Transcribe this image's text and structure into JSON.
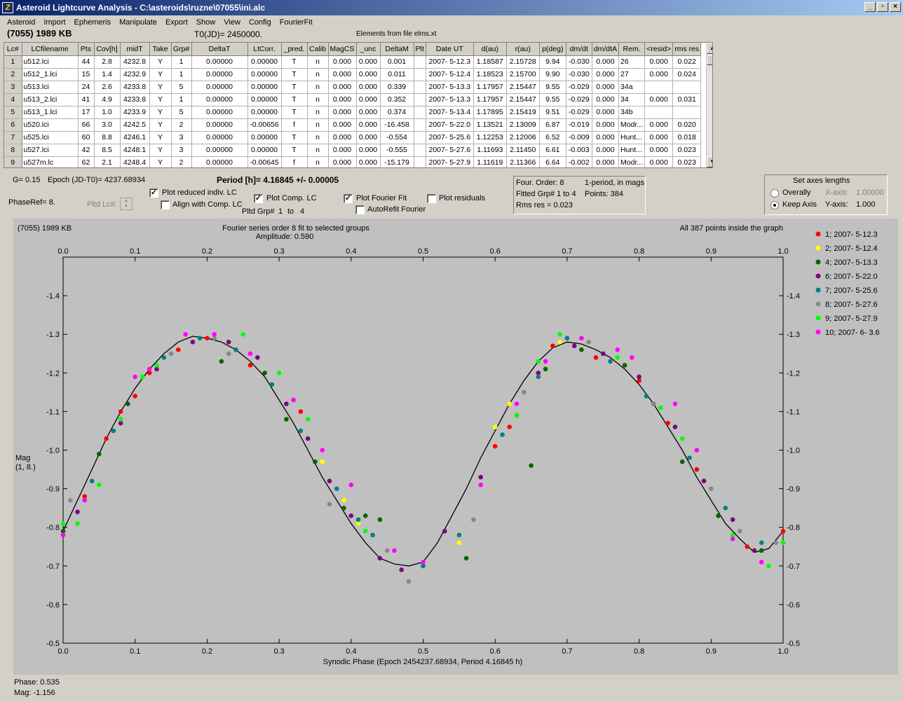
{
  "window": {
    "title": "Asteroid Lightcurve Analysis - C:\\asteroids\\ruzne\\07055\\ini.alc",
    "minimize": "_",
    "restore": "▫",
    "close": "×"
  },
  "menu": [
    "Asteroid",
    "Import",
    "Ephemeris",
    "Manipulate",
    "Export",
    "Show",
    "View",
    "Config",
    "FourierFit"
  ],
  "header": {
    "asteroid": "(7055) 1989 KB",
    "t0": "T0(JD)= 2450000.",
    "elements": "Elements from file elms.xt"
  },
  "table": {
    "columns": [
      "Lc#",
      "LCfilename",
      "Pts",
      "Cov[h]",
      "midT",
      "Take",
      "Grp#",
      "DeltaT",
      "LtCorr.",
      "_pred.",
      "Calib",
      "MagCS",
      "_unc",
      "DeltaM",
      "Plt",
      "Date UT",
      "d(au)",
      "r(au)",
      "p(deg)",
      "dm/dt",
      "dm/dtA",
      "Rem.",
      "<resid>",
      "rms res"
    ],
    "rows": [
      [
        "1",
        "u512.lci",
        "44",
        "2.8",
        "4232.8",
        "Y",
        "1",
        "0.00000",
        "0.00000",
        "T",
        "n",
        "0.000",
        "0.000",
        "0.001",
        "",
        "2007- 5-12.3",
        "1.18587",
        "2.15728",
        "9.94",
        "-0.030",
        "0.000",
        "26",
        "0.000",
        "0.022"
      ],
      [
        "2",
        "u512_1.lci",
        "15",
        "1.4",
        "4232.9",
        "Y",
        "1",
        "0.00000",
        "0.00000",
        "T",
        "n",
        "0.000",
        "0.000",
        "0.011",
        "",
        "2007- 5-12.4",
        "1.18523",
        "2.15700",
        "9.90",
        "-0.030",
        "0.000",
        "27",
        "0.000",
        "0.024"
      ],
      [
        "3",
        "u513.lci",
        "24",
        "2.6",
        "4233.8",
        "Y",
        "5",
        "0.00000",
        "0.00000",
        "T",
        "n",
        "0.000",
        "0.000",
        "0.339",
        "",
        "2007- 5-13.3",
        "1.17957",
        "2.15447",
        "9.55",
        "-0.029",
        "0.000",
        "34a",
        "",
        ""
      ],
      [
        "4",
        "u513_2.lci",
        "41",
        "4.9",
        "4233.8",
        "Y",
        "1",
        "0.00000",
        "0.00000",
        "T",
        "n",
        "0.000",
        "0.000",
        "0.352",
        "",
        "2007- 5-13.3",
        "1.17957",
        "2.15447",
        "9.55",
        "-0.029",
        "0.000",
        "34",
        "0.000",
        "0.031"
      ],
      [
        "5",
        "u513_1.lci",
        "17",
        "1.0",
        "4233.9",
        "Y",
        "5",
        "0.00000",
        "0.00000",
        "T",
        "n",
        "0.000",
        "0.000",
        "0.374",
        "",
        "2007- 5-13.4",
        "1.17895",
        "2.15419",
        "9.51",
        "-0.029",
        "0.000",
        "34b",
        "",
        ""
      ],
      [
        "6",
        "u520.lci",
        "66",
        "3.0",
        "4242.5",
        "Y",
        "2",
        "0.00000",
        "-0.00656",
        "f",
        "n",
        "0.000",
        "0.000",
        "-16.458",
        "",
        "2007- 5-22.0",
        "1.13521",
        "2.13009",
        "6.87",
        "-0.019",
        "0.000",
        "Modr...",
        "0.000",
        "0.020"
      ],
      [
        "7",
        "u525.lci",
        "60",
        "8.8",
        "4246.1",
        "Y",
        "3",
        "0.00000",
        "0.00000",
        "T",
        "n",
        "0.000",
        "0.000",
        "-0.554",
        "",
        "2007- 5-25.6",
        "1.12253",
        "2.12006",
        "6.52",
        "-0.009",
        "0.000",
        "Hunt...",
        "0.000",
        "0.018"
      ],
      [
        "8",
        "u527.lci",
        "42",
        "8.5",
        "4248.1",
        "Y",
        "3",
        "0.00000",
        "0.00000",
        "T",
        "n",
        "0.000",
        "0.000",
        "-0.555",
        "",
        "2007- 5-27.6",
        "1.11693",
        "2.11450",
        "6.61",
        "-0.003",
        "0.000",
        "Hunt...",
        "0.000",
        "0.023"
      ],
      [
        "9",
        "u527m.lc",
        "62",
        "2.1",
        "4248.4",
        "Y",
        "2",
        "0.00000",
        "-0.00645",
        "f",
        "n",
        "0.000",
        "0.000",
        "-15.179",
        "",
        "2007- 5-27.9",
        "1.11619",
        "2.11366",
        "6.64",
        "-0.002",
        "0.000",
        "Modr...",
        "0.000",
        "0.023"
      ]
    ]
  },
  "controls": {
    "g_value": "G= 0.15",
    "epoch": "Epoch (JD-T0)= 4237.68934",
    "period": "Period [h]= 4.16845 +/- 0.00005",
    "phaseref": "PhaseRef= 8.",
    "pltd_lc": "Pltd Lc#:",
    "plot_reduced": "Plot reduced indiv. LC",
    "plot_reduced_checked": true,
    "align_comp": "Align with Comp. LC",
    "align_comp_checked": false,
    "plot_comp": "Plot Comp. LC",
    "plot_comp_checked": true,
    "pltd_grp": "Pltd Grp#",
    "pltd_grp_from": "1",
    "pltd_grp_to_label": "to",
    "pltd_grp_to": "4",
    "plot_fourier": "Plot Fourier Fit",
    "plot_fourier_checked": true,
    "autorefit": "AutoRefit Fourier",
    "autorefit_checked": false,
    "plot_residuals": "Plot residuals",
    "plot_residuals_checked": false
  },
  "fourier_info": {
    "order": "Four. Order:  8",
    "mode": "1-period, in mags",
    "fitted": "Fitted Grp# 1 to 4",
    "points": "Points: 384",
    "rms": "Rms res     = 0.023"
  },
  "axes_panel": {
    "title": "Set axes lengths",
    "overally": "Overally",
    "keep_axis": "Keep Axis",
    "selected": "keep_axis",
    "x_axis_label": "X-axis:",
    "x_axis_value": "1.00000",
    "y_axis_label": "Y-axis:",
    "y_axis_value": "1.000"
  },
  "plot": {
    "corner_title": "(7055) 1989 KB",
    "center_title": "Fourier series order 8 fit to selected groups",
    "amplitude": "Amplitude: 0.590",
    "points_note": "All 387 points inside the graph",
    "ylabel_1": "Mag",
    "ylabel_2": "(1, 8.)",
    "xlabel": "Synodic Phase (Epoch 2454237.68934, Period 4.16845 h)"
  },
  "status": {
    "phase": "Phase:  0.535",
    "mag": "Mag:    -1.156"
  },
  "chart_data": {
    "type": "scatter",
    "title": "Fourier series order 8 fit to selected groups",
    "xlabel": "Synodic Phase (Epoch 2454237.68934, Period 4.16845 h)",
    "ylabel": "Mag (1, 8.)",
    "xlim": [
      0.0,
      1.0
    ],
    "ylim": [
      -1.5,
      -0.5
    ],
    "y_inverted": true,
    "x_ticks": [
      "0.0",
      "0.1",
      "0.2",
      "0.3",
      "0.4",
      "0.5",
      "0.6",
      "0.7",
      "0.8",
      "0.9",
      "1.0"
    ],
    "y_ticks": [
      "-1.4",
      "-1.3",
      "-1.2",
      "-1.1",
      "-1.0",
      "-0.9",
      "-0.8",
      "-0.7",
      "-0.6",
      "-0.5"
    ],
    "legend_position": "right",
    "fourier_fit": {
      "x": [
        0.0,
        0.02,
        0.04,
        0.06,
        0.08,
        0.1,
        0.12,
        0.14,
        0.16,
        0.18,
        0.2,
        0.22,
        0.24,
        0.26,
        0.28,
        0.3,
        0.32,
        0.34,
        0.36,
        0.38,
        0.4,
        0.42,
        0.44,
        0.46,
        0.48,
        0.5,
        0.52,
        0.54,
        0.56,
        0.58,
        0.6,
        0.62,
        0.64,
        0.66,
        0.68,
        0.7,
        0.72,
        0.74,
        0.76,
        0.78,
        0.8,
        0.82,
        0.84,
        0.86,
        0.88,
        0.9,
        0.92,
        0.94,
        0.96,
        0.98,
        1.0
      ],
      "y": [
        -0.79,
        -0.87,
        -0.95,
        -1.03,
        -1.1,
        -1.16,
        -1.21,
        -1.25,
        -1.28,
        -1.295,
        -1.29,
        -1.28,
        -1.26,
        -1.23,
        -1.19,
        -1.13,
        -1.07,
        -1.0,
        -0.93,
        -0.87,
        -0.81,
        -0.76,
        -0.72,
        -0.705,
        -0.7,
        -0.71,
        -0.76,
        -0.83,
        -0.9,
        -0.98,
        -1.05,
        -1.12,
        -1.18,
        -1.23,
        -1.265,
        -1.28,
        -1.275,
        -1.26,
        -1.24,
        -1.21,
        -1.17,
        -1.12,
        -1.06,
        -1.0,
        -0.93,
        -0.87,
        -0.81,
        -0.77,
        -0.735,
        -0.745,
        -0.79
      ]
    },
    "series": [
      {
        "name": "1; 2007- 5-12.3",
        "color": "#ff0000",
        "x": [
          0.03,
          0.06,
          0.08,
          0.1,
          0.12,
          0.16,
          0.2,
          0.24,
          0.26,
          0.33,
          0.6,
          0.62,
          0.68,
          0.74,
          0.8,
          0.84,
          0.88,
          0.95,
          1.0
        ],
        "y": [
          -0.88,
          -1.03,
          -1.1,
          -1.14,
          -1.2,
          -1.26,
          -1.29,
          -1.26,
          -1.22,
          -1.1,
          -1.01,
          -1.06,
          -1.27,
          -1.24,
          -1.18,
          -1.07,
          -0.95,
          -0.75,
          -0.79
        ]
      },
      {
        "name": "2; 2007- 5-12.4",
        "color": "#ffff00",
        "x": [
          0.36,
          0.39,
          0.41,
          0.55,
          0.6,
          0.62,
          0.69,
          0.72
        ],
        "y": [
          -0.97,
          -0.87,
          -0.81,
          -0.76,
          -1.06,
          -1.12,
          -1.28,
          -1.29
        ]
      },
      {
        "name": "4; 2007- 5-13.3",
        "color": "#006400",
        "x": [
          0.0,
          0.05,
          0.09,
          0.22,
          0.28,
          0.31,
          0.35,
          0.39,
          0.42,
          0.44,
          0.56,
          0.65,
          0.67,
          0.72,
          0.78,
          0.82,
          0.86,
          0.91,
          0.97
        ],
        "y": [
          -0.79,
          -0.99,
          -1.12,
          -1.23,
          -1.2,
          -1.08,
          -0.97,
          -0.85,
          -0.83,
          -0.82,
          -0.72,
          -0.96,
          -1.21,
          -1.26,
          -1.22,
          -1.12,
          -0.97,
          -0.83,
          -0.74
        ]
      },
      {
        "name": "6; 2007- 5-22.0",
        "color": "#800080",
        "x": [
          0.02,
          0.08,
          0.13,
          0.18,
          0.23,
          0.27,
          0.31,
          0.34,
          0.37,
          0.4,
          0.44,
          0.47,
          0.53,
          0.58,
          0.63,
          0.66,
          0.71,
          0.75,
          0.8,
          0.85,
          0.89,
          0.93,
          0.96
        ],
        "y": [
          -0.84,
          -1.07,
          -1.21,
          -1.28,
          -1.28,
          -1.24,
          -1.12,
          -1.03,
          -0.92,
          -0.83,
          -0.72,
          -0.69,
          -0.79,
          -0.93,
          -1.09,
          -1.2,
          -1.27,
          -1.25,
          -1.19,
          -1.06,
          -0.92,
          -0.82,
          -0.74
        ]
      },
      {
        "name": "7; 2007- 5-25.6",
        "color": "#008080",
        "x": [
          0.04,
          0.07,
          0.14,
          0.19,
          0.24,
          0.29,
          0.33,
          0.38,
          0.41,
          0.43,
          0.5,
          0.55,
          0.61,
          0.66,
          0.7,
          0.76,
          0.81,
          0.87,
          0.92,
          0.97
        ],
        "y": [
          -0.92,
          -1.05,
          -1.24,
          -1.29,
          -1.26,
          -1.17,
          -1.05,
          -0.9,
          -0.82,
          -0.78,
          -0.7,
          -0.78,
          -1.04,
          -1.19,
          -1.29,
          -1.23,
          -1.14,
          -0.98,
          -0.85,
          -0.76
        ]
      },
      {
        "name": "8; 2007- 5-27.6",
        "color": "#888888",
        "x": [
          0.01,
          0.15,
          0.21,
          0.23,
          0.37,
          0.45,
          0.48,
          0.57,
          0.64,
          0.73,
          0.82,
          0.9,
          0.94,
          0.99
        ],
        "y": [
          -0.87,
          -1.25,
          -1.29,
          -1.25,
          -0.86,
          -0.74,
          -0.66,
          -0.82,
          -1.15,
          -1.28,
          -1.12,
          -0.9,
          -0.79,
          -0.76
        ]
      },
      {
        "name": "9; 2007- 5-27.9",
        "color": "#00ff00",
        "x": [
          0.0,
          0.02,
          0.05,
          0.08,
          0.11,
          0.13,
          0.25,
          0.3,
          0.34,
          0.42,
          0.63,
          0.66,
          0.69,
          0.77,
          0.83,
          0.86,
          0.93,
          0.98,
          1.0
        ],
        "y": [
          -0.81,
          -0.81,
          -0.91,
          -1.08,
          -1.19,
          -1.22,
          -1.3,
          -1.2,
          -1.08,
          -0.79,
          -1.09,
          -1.23,
          -1.3,
          -1.24,
          -1.11,
          -1.03,
          -0.78,
          -0.7,
          -0.76
        ]
      },
      {
        "name": "10; 2007- 6- 3.6",
        "color": "#ff00ff",
        "x": [
          0.0,
          0.03,
          0.1,
          0.12,
          0.17,
          0.21,
          0.26,
          0.32,
          0.36,
          0.4,
          0.46,
          0.5,
          0.58,
          0.63,
          0.67,
          0.72,
          0.77,
          0.79,
          0.85,
          0.88,
          0.93,
          0.97
        ],
        "y": [
          -0.78,
          -0.87,
          -1.19,
          -1.21,
          -1.3,
          -1.3,
          -1.25,
          -1.13,
          -1.0,
          -0.91,
          -0.74,
          -0.71,
          -0.91,
          -1.12,
          -1.23,
          -1.29,
          -1.26,
          -1.24,
          -1.12,
          -1.0,
          -0.77,
          -0.71
        ]
      }
    ]
  }
}
